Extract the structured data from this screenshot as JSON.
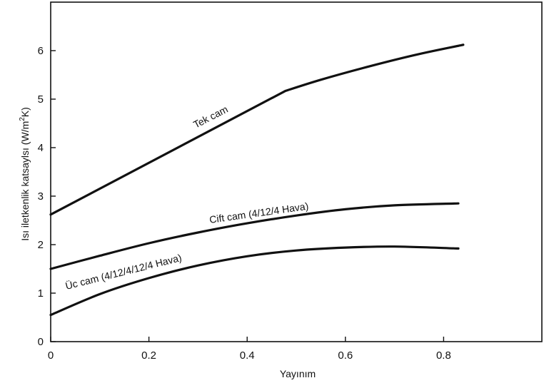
{
  "chart_data": {
    "type": "line",
    "xlabel": "Yayınım",
    "ylabel_main": "Isı iletkenlik katsaylsı (W/m",
    "ylabel_sup": "2",
    "ylabel_end": "K)",
    "xlim": [
      0,
      1.0
    ],
    "ylim": [
      0,
      7
    ],
    "xticks": [
      0,
      0.2,
      0.4,
      0.6,
      0.8
    ],
    "xtick_labels": [
      "0",
      "0.2",
      "0.4",
      "0.6",
      "0.8"
    ],
    "yticks": [
      0,
      1,
      2,
      3,
      4,
      5,
      6
    ],
    "ytick_labels": [
      "0",
      "1",
      "2",
      "3",
      "4",
      "5",
      "6"
    ],
    "grid": false,
    "series": [
      {
        "name": "Tek cam",
        "x": [
          0,
          0.1,
          0.2,
          0.3,
          0.4,
          0.478,
          0.55,
          0.65,
          0.75,
          0.84
        ],
        "y": [
          2.62,
          3.12,
          3.64,
          4.15,
          4.66,
          5.17,
          5.4,
          5.68,
          5.93,
          6.12
        ]
      },
      {
        "name": "Cift cam (4/12/4 Hava)",
        "x": [
          0,
          0.1,
          0.2,
          0.3,
          0.4,
          0.5,
          0.6,
          0.7,
          0.83
        ],
        "y": [
          1.5,
          1.77,
          2.03,
          2.25,
          2.44,
          2.6,
          2.73,
          2.81,
          2.85
        ]
      },
      {
        "name": "Üc cam (4/12/4/12/4 Hava)",
        "x": [
          0,
          0.1,
          0.2,
          0.3,
          0.4,
          0.5,
          0.6,
          0.7,
          0.83
        ],
        "y": [
          0.55,
          0.98,
          1.31,
          1.57,
          1.76,
          1.88,
          1.94,
          1.96,
          1.92
        ]
      }
    ]
  }
}
